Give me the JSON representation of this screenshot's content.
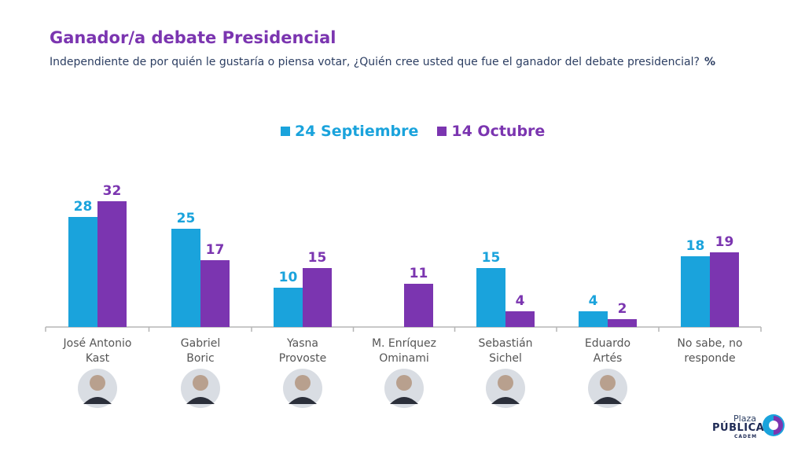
{
  "header": {
    "title": "Ganador/a debate Presidencial",
    "subtitle": "Independiente de por quién le gustaría o piensa votar, ¿Quién cree usted que fue el ganador del debate presidencial?",
    "unit": "%"
  },
  "colors": {
    "series1": "#1aa3dc",
    "series2": "#7b35b0",
    "axis": "#b5b5b5",
    "category_text": "#555555"
  },
  "chart_data": {
    "type": "bar",
    "title": "Ganador/a debate Presidencial",
    "xlabel": "",
    "ylabel": "%",
    "ylim": [
      0,
      35
    ],
    "legend": "top-center",
    "categories": [
      [
        "José Antonio",
        "Kast"
      ],
      [
        "Gabriel",
        "Boric"
      ],
      [
        "Yasna",
        "Provoste"
      ],
      [
        "M. Enríquez",
        "Ominami"
      ],
      [
        "Sebastián",
        "Sichel"
      ],
      [
        "Eduardo",
        "Artés"
      ],
      [
        "No sabe, no",
        "responde"
      ]
    ],
    "series": [
      {
        "name": "24 Septiembre",
        "values": [
          28,
          25,
          10,
          null,
          15,
          4,
          18
        ]
      },
      {
        "name": "14 Octubre",
        "values": [
          32,
          17,
          15,
          11,
          4,
          2,
          19
        ]
      }
    ]
  },
  "logo": {
    "line1": "Plaza",
    "line2": "PÚBLICA",
    "line3": "CADEM"
  }
}
